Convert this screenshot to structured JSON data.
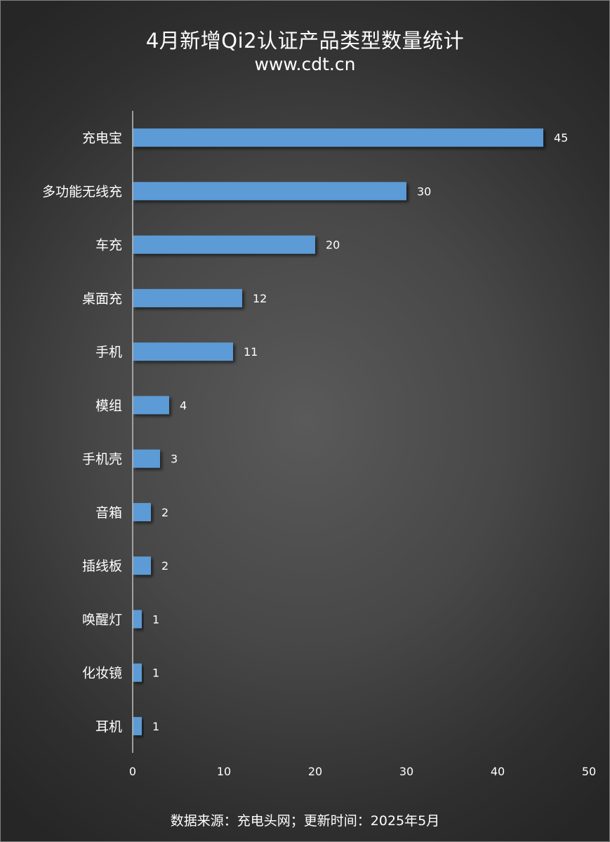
{
  "chart_data": {
    "type": "bar",
    "orientation": "horizontal",
    "title": "4月新增Qi2认证产品类型数量统计",
    "subtitle": "www.cdt.cn",
    "categories": [
      "充电宝",
      "多功能无线充",
      "车充",
      "桌面充",
      "手机",
      "模组",
      "手机壳",
      "音箱",
      "插线板",
      "唤醒灯",
      "化妆镜",
      "耳机"
    ],
    "values": [
      45,
      30,
      20,
      12,
      11,
      4,
      3,
      2,
      2,
      1,
      1,
      1
    ],
    "xlim": [
      0,
      50
    ],
    "xticks": [
      0,
      10,
      20,
      30,
      40,
      50
    ],
    "xlabel": "",
    "ylabel": "",
    "grid": false,
    "bar_color": "#5b9bd5",
    "source": "数据来源：充电头网；更新时间：2025年5月"
  }
}
